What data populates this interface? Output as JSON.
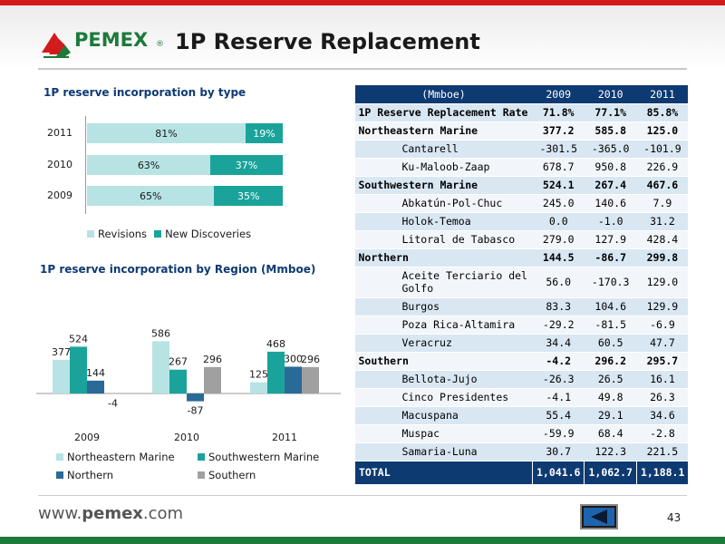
{
  "header": {
    "logo_text": "PEMEX",
    "logo_reg": "®",
    "title": "1P Reserve Replacement"
  },
  "chart_data": [
    {
      "type": "bar",
      "title": "1P reserve incorporation by type",
      "orientation": "horizontal-stacked-percent",
      "categories": [
        "2011",
        "2010",
        "2009"
      ],
      "series": [
        {
          "name": "Revisions",
          "values": [
            81,
            63,
            65
          ],
          "labels": [
            "81%",
            "63%",
            "65%"
          ],
          "color": "#b7e3e4"
        },
        {
          "name": "New Discoveries",
          "values": [
            19,
            37,
            35
          ],
          "labels": [
            "19%",
            "37%",
            "35%"
          ],
          "color": "#1aa39b"
        }
      ],
      "legend": "bottom"
    },
    {
      "type": "bar",
      "title": "1P reserve incorporation by Region (Mmboe)",
      "categories": [
        "2009",
        "2010",
        "2011"
      ],
      "series": [
        {
          "name": "Northeastern Marine",
          "values": [
            377,
            586,
            125
          ],
          "color": "#b7e3e4"
        },
        {
          "name": "Southwestern Marine",
          "values": [
            524,
            267,
            468
          ],
          "color": "#1aa39b"
        },
        {
          "name": "Northern",
          "values": [
            144,
            -87,
            300
          ],
          "color": "#2a6a96"
        },
        {
          "name": "Southern",
          "values": [
            -4,
            296,
            296
          ],
          "color": "#a0a0a0"
        }
      ],
      "legend": "bottom",
      "ylim": [
        -110,
        620
      ]
    }
  ],
  "table": {
    "header": [
      "(Mmboe)",
      "2009",
      "2010",
      "2011"
    ],
    "rows": [
      {
        "label": "1P Reserve Replacement Rate",
        "v": [
          "71.8%",
          "77.1%",
          "85.8%"
        ],
        "kind": "top",
        "bold": true
      },
      {
        "label": "Northeastern Marine",
        "v": [
          "377.2",
          "585.8",
          "125.0"
        ],
        "kind": "region",
        "bold": true
      },
      {
        "label": "Cantarell",
        "v": [
          "-301.5",
          "-365.0",
          "-101.9"
        ],
        "kind": "sub"
      },
      {
        "label": "Ku-Maloob-Zaap",
        "v": [
          "678.7",
          "950.8",
          "226.9"
        ],
        "kind": "sub"
      },
      {
        "label": "Southwestern Marine",
        "v": [
          "524.1",
          "267.4",
          "467.6"
        ],
        "kind": "region",
        "bold": true
      },
      {
        "label": "Abkatún-Pol-Chuc",
        "v": [
          "245.0",
          "140.6",
          "7.9"
        ],
        "kind": "sub"
      },
      {
        "label": "Holok-Temoa",
        "v": [
          "0.0",
          "-1.0",
          "31.2"
        ],
        "kind": "sub"
      },
      {
        "label": "Litoral de Tabasco",
        "v": [
          "279.0",
          "127.9",
          "428.4"
        ],
        "kind": "sub"
      },
      {
        "label": "Northern",
        "v": [
          "144.5",
          "-86.7",
          "299.8"
        ],
        "kind": "region",
        "bold": true
      },
      {
        "label": "Aceite Terciario del Golfo",
        "v": [
          "56.0",
          "-170.3",
          "129.0"
        ],
        "kind": "sub",
        "tall": true
      },
      {
        "label": "Burgos",
        "v": [
          "83.3",
          "104.6",
          "129.9"
        ],
        "kind": "sub"
      },
      {
        "label": "Poza Rica-Altamira",
        "v": [
          "-29.2",
          "-81.5",
          "-6.9"
        ],
        "kind": "sub"
      },
      {
        "label": "Veracruz",
        "v": [
          "34.4",
          "60.5",
          "47.7"
        ],
        "kind": "sub"
      },
      {
        "label": "Southern",
        "v": [
          "-4.2",
          "296.2",
          "295.7"
        ],
        "kind": "region",
        "bold": true
      },
      {
        "label": "Bellota-Jujo",
        "v": [
          "-26.3",
          "26.5",
          "16.1"
        ],
        "kind": "sub"
      },
      {
        "label": "Cinco Presidentes",
        "v": [
          "-4.1",
          "49.8",
          "26.3"
        ],
        "kind": "sub"
      },
      {
        "label": "Macuspana",
        "v": [
          "55.4",
          "29.1",
          "34.6"
        ],
        "kind": "sub"
      },
      {
        "label": "Muspac",
        "v": [
          "-59.9",
          "68.4",
          "-2.8"
        ],
        "kind": "sub"
      },
      {
        "label": "Samaria-Luna",
        "v": [
          "30.7",
          "122.3",
          "221.5"
        ],
        "kind": "sub"
      }
    ],
    "total": {
      "label": "TOTAL",
      "v": [
        "1,041.6",
        "1,062.7",
        "1,188.1"
      ]
    }
  },
  "footer": {
    "url_prefix": "www.",
    "url_brand": "pemex",
    "url_suffix": ".com",
    "page_number": "43"
  },
  "colors": {
    "brand_green": "#1c7a3a",
    "brand_red": "#d21c1c",
    "table_header": "#0e3a72"
  }
}
